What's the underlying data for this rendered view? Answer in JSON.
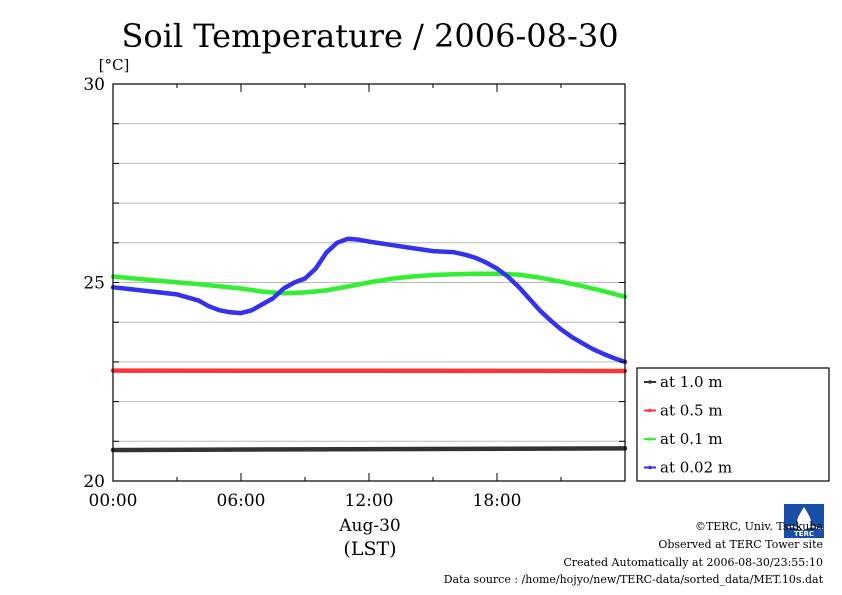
{
  "chart_data": {
    "type": "line",
    "title": "Soil Temperature / 2006-08-30",
    "yunit": "[°C]",
    "ylim": [
      20,
      30
    ],
    "ytick_labels": [
      "20",
      "25",
      "30"
    ],
    "y_grid_step": 1,
    "xlim": [
      0,
      24
    ],
    "xticks": [
      0,
      6,
      12,
      18
    ],
    "xtick_labels": [
      "00:00",
      "06:00",
      "12:00",
      "18:00"
    ],
    "xdate": "Aug-30",
    "xlabel": "(LST)",
    "grid": true,
    "legend_position": "right",
    "series": [
      {
        "name": "at 1.0 m",
        "color": "#333333",
        "x": [
          0,
          24
        ],
        "y": [
          20.78,
          20.82
        ]
      },
      {
        "name": "at 0.5 m",
        "color": "#ff3333",
        "x": [
          0,
          24
        ],
        "y": [
          22.78,
          22.77
        ]
      },
      {
        "name": "at 0.1 m",
        "color": "#33ee33",
        "x": [
          0,
          2,
          4,
          6,
          7,
          8,
          9,
          10,
          11,
          12,
          13,
          14,
          15,
          16,
          17,
          18,
          19,
          20,
          21,
          22,
          23,
          24
        ],
        "y": [
          25.15,
          25.05,
          24.96,
          24.85,
          24.77,
          24.73,
          24.75,
          24.8,
          24.9,
          25.0,
          25.09,
          25.15,
          25.19,
          25.21,
          25.22,
          25.22,
          25.2,
          25.12,
          25.02,
          24.91,
          24.78,
          24.64
        ]
      },
      {
        "name": "at 0.02 m",
        "color": "#3333ee",
        "x": [
          0,
          1,
          2,
          3,
          4,
          4.5,
          5,
          5.5,
          6,
          6.5,
          7,
          7.5,
          8,
          8.5,
          9,
          9.5,
          10,
          10.5,
          11,
          11.5,
          12,
          13,
          14,
          15,
          16,
          16.5,
          17,
          17.5,
          18,
          18.5,
          19,
          19.5,
          20,
          20.5,
          21,
          21.5,
          22,
          22.5,
          23,
          23.5,
          24
        ],
        "y": [
          24.88,
          24.82,
          24.76,
          24.7,
          24.55,
          24.4,
          24.3,
          24.25,
          24.23,
          24.3,
          24.45,
          24.6,
          24.85,
          25.0,
          25.1,
          25.35,
          25.75,
          26.0,
          26.1,
          26.08,
          26.03,
          25.95,
          25.87,
          25.79,
          25.76,
          25.7,
          25.62,
          25.5,
          25.35,
          25.15,
          24.9,
          24.6,
          24.3,
          24.05,
          23.82,
          23.63,
          23.47,
          23.32,
          23.2,
          23.09,
          23.0
        ]
      }
    ]
  },
  "footer": {
    "copyright": "©TERC, Univ. Tsukuba",
    "observed": "Observed at TERC Tower site",
    "created": "Created Automatically at 2006-08-30/23:55:10",
    "source": "Data source : /home/hojyo/new/TERC-data/sorted_data/MET.10s.dat"
  },
  "logo": {
    "alt": "TERC"
  }
}
